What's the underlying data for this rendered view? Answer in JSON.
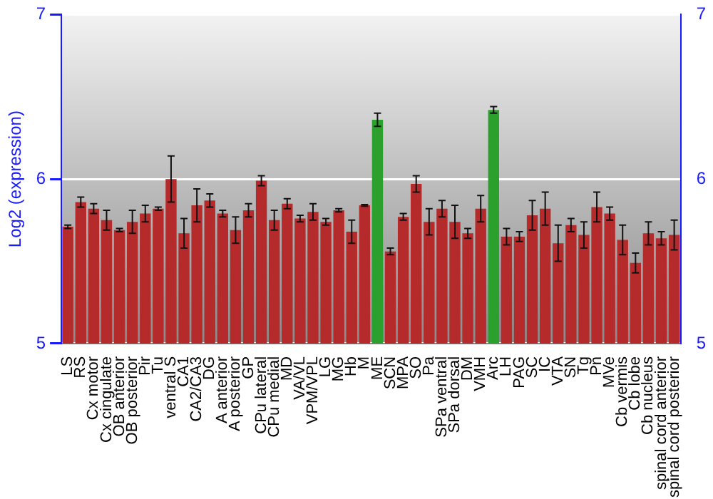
{
  "chart_data": {
    "type": "bar",
    "ylabel": "Log2 (expression)",
    "categories": [
      "LS",
      "RS",
      "Cx motor",
      "Cx cingulate",
      "OB anterior",
      "OB posterior",
      "Pir",
      "Tu",
      "ventral S",
      "CA1",
      "CA2/CA3",
      "DG",
      "A anterior",
      "A posterior",
      "GP",
      "CPu lateral",
      "CPu medial",
      "MD",
      "VA/VL",
      "VPM/VPL",
      "LG",
      "MG",
      "Hb",
      "M",
      "ME",
      "SCN",
      "MPA",
      "SO",
      "Pa",
      "SPa ventral",
      "SPa dorsal",
      "DM",
      "VMH",
      "Arc",
      "LH",
      "PAG",
      "SC",
      "IC",
      "VTA",
      "SN",
      "Tg",
      "Pn",
      "MVe",
      "Cb vermis",
      "Cb lobe",
      "Cb nucleus",
      "spinal cord anterior",
      "spinal cord posterior"
    ],
    "values": [
      5.71,
      5.86,
      5.82,
      5.75,
      5.69,
      5.74,
      5.79,
      5.82,
      6.0,
      5.67,
      5.84,
      5.87,
      5.79,
      5.69,
      5.81,
      5.99,
      5.75,
      5.85,
      5.76,
      5.8,
      5.74,
      5.81,
      5.68,
      5.84,
      6.36,
      5.56,
      5.77,
      5.97,
      5.74,
      5.82,
      5.74,
      5.67,
      5.82,
      6.42,
      5.65,
      5.65,
      5.78,
      5.82,
      5.61,
      5.72,
      5.66,
      5.83,
      5.79,
      5.63,
      5.49,
      5.67,
      5.64,
      5.66
    ],
    "errors": [
      0.01,
      0.03,
      0.03,
      0.06,
      0.01,
      0.07,
      0.05,
      0.01,
      0.14,
      0.09,
      0.1,
      0.04,
      0.02,
      0.08,
      0.04,
      0.03,
      0.06,
      0.03,
      0.02,
      0.05,
      0.02,
      0.01,
      0.07,
      0.005,
      0.04,
      0.02,
      0.02,
      0.05,
      0.08,
      0.05,
      0.1,
      0.03,
      0.08,
      0.02,
      0.05,
      0.03,
      0.09,
      0.1,
      0.11,
      0.04,
      0.08,
      0.09,
      0.04,
      0.09,
      0.06,
      0.07,
      0.04,
      0.09
    ],
    "colors": [
      "#b52a2a",
      "#b52a2a",
      "#b52a2a",
      "#b52a2a",
      "#b52a2a",
      "#b52a2a",
      "#b52a2a",
      "#b52a2a",
      "#b52a2a",
      "#b52a2a",
      "#b52a2a",
      "#b52a2a",
      "#b52a2a",
      "#b52a2a",
      "#b52a2a",
      "#b52a2a",
      "#b52a2a",
      "#b52a2a",
      "#b52a2a",
      "#b52a2a",
      "#b52a2a",
      "#b52a2a",
      "#b52a2a",
      "#b52a2a",
      "#2ca02c",
      "#b52a2a",
      "#b52a2a",
      "#b52a2a",
      "#b52a2a",
      "#b52a2a",
      "#b52a2a",
      "#b52a2a",
      "#b52a2a",
      "#2ca02c",
      "#b52a2a",
      "#b52a2a",
      "#b52a2a",
      "#b52a2a",
      "#b52a2a",
      "#b52a2a",
      "#b52a2a",
      "#b52a2a",
      "#b52a2a",
      "#b52a2a",
      "#b52a2a",
      "#b52a2a",
      "#b52a2a",
      "#b52a2a"
    ],
    "ylim": [
      5,
      7
    ],
    "yticks": [
      5,
      6,
      7
    ],
    "y2lim": [
      5,
      7
    ],
    "y2ticks": [
      5,
      6,
      7
    ],
    "grid": "y",
    "legend": false
  }
}
